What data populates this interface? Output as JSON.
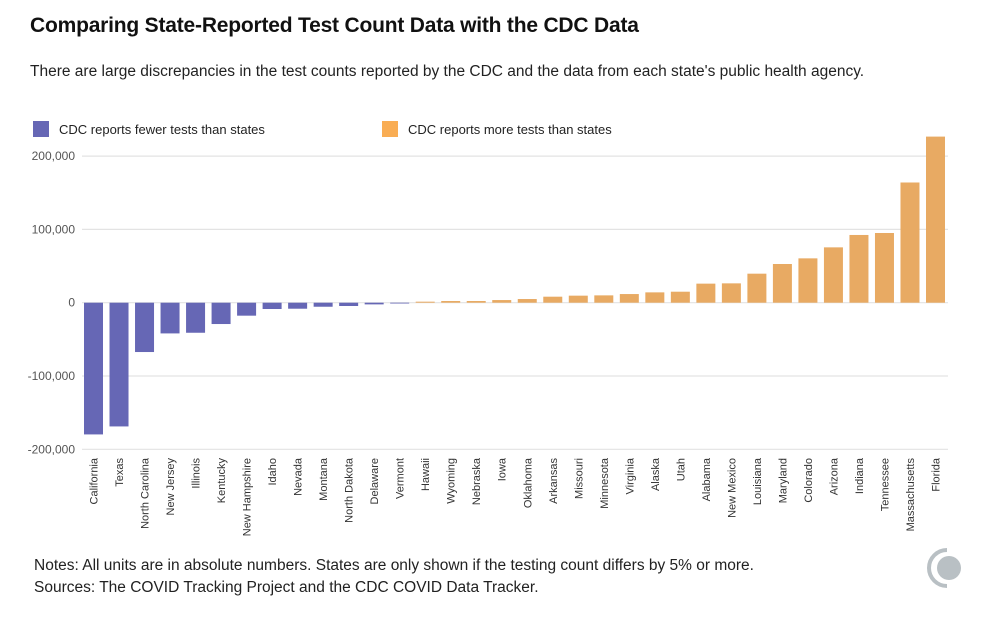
{
  "title": "Comparing State-Reported Test Count Data with the CDC Data",
  "subtitle": "There are large discrepancies in the test counts reported by the CDC and the data from each state's public health agency.",
  "notes": [
    "Notes: All units are in absolute numbers. States are only shown if the testing count differs by 5% or more.",
    "Sources: The COVID Tracking Project and the CDC COVID Data Tracker."
  ],
  "colors": {
    "fewer": "#6667b5",
    "more": "#e8aa63",
    "legend_more": "#f9ad54"
  },
  "chart_data": {
    "type": "bar",
    "title": "",
    "xlabel": "",
    "ylabel": "",
    "ylim": [
      -200000,
      230000
    ],
    "yticks": [
      200000,
      100000,
      0,
      -100000,
      -200000
    ],
    "ytick_labels": [
      "200,000",
      "100,000",
      "0",
      "-100,000",
      "-200,000"
    ],
    "grid": true,
    "legend_position": "top",
    "legend": [
      {
        "label": "CDC reports fewer tests than states",
        "color": "#6667b5"
      },
      {
        "label": "CDC reports more tests than states",
        "color": "#f9ad54"
      }
    ],
    "categories": [
      "California",
      "Texas",
      "North Carolina",
      "New Jersey",
      "Illinois",
      "Kentucky",
      "New Hampshire",
      "Idaho",
      "Nevada",
      "Montana",
      "North Dakota",
      "Delaware",
      "Vermont",
      "Hawaii",
      "Wyoming",
      "Nebraska",
      "Iowa",
      "Oklahoma",
      "Arkansas",
      "Missouri",
      "Minnesota",
      "Virginia",
      "Alaska",
      "Utah",
      "Alabama",
      "New Mexico",
      "Louisiana",
      "Maryland",
      "Colorado",
      "Arizona",
      "Indiana",
      "Tennessee",
      "Massachusetts",
      "Florida"
    ],
    "values": [
      -179700,
      -168800,
      -67300,
      -41900,
      -41000,
      -29100,
      -17700,
      -8600,
      -8200,
      -5500,
      -4500,
      -2300,
      -900,
      1400,
      2300,
      2300,
      3600,
      5000,
      8200,
      9600,
      10000,
      11800,
      14100,
      15000,
      26000,
      26400,
      39600,
      52800,
      60500,
      75500,
      92400,
      95100,
      164000,
      226600
    ]
  }
}
